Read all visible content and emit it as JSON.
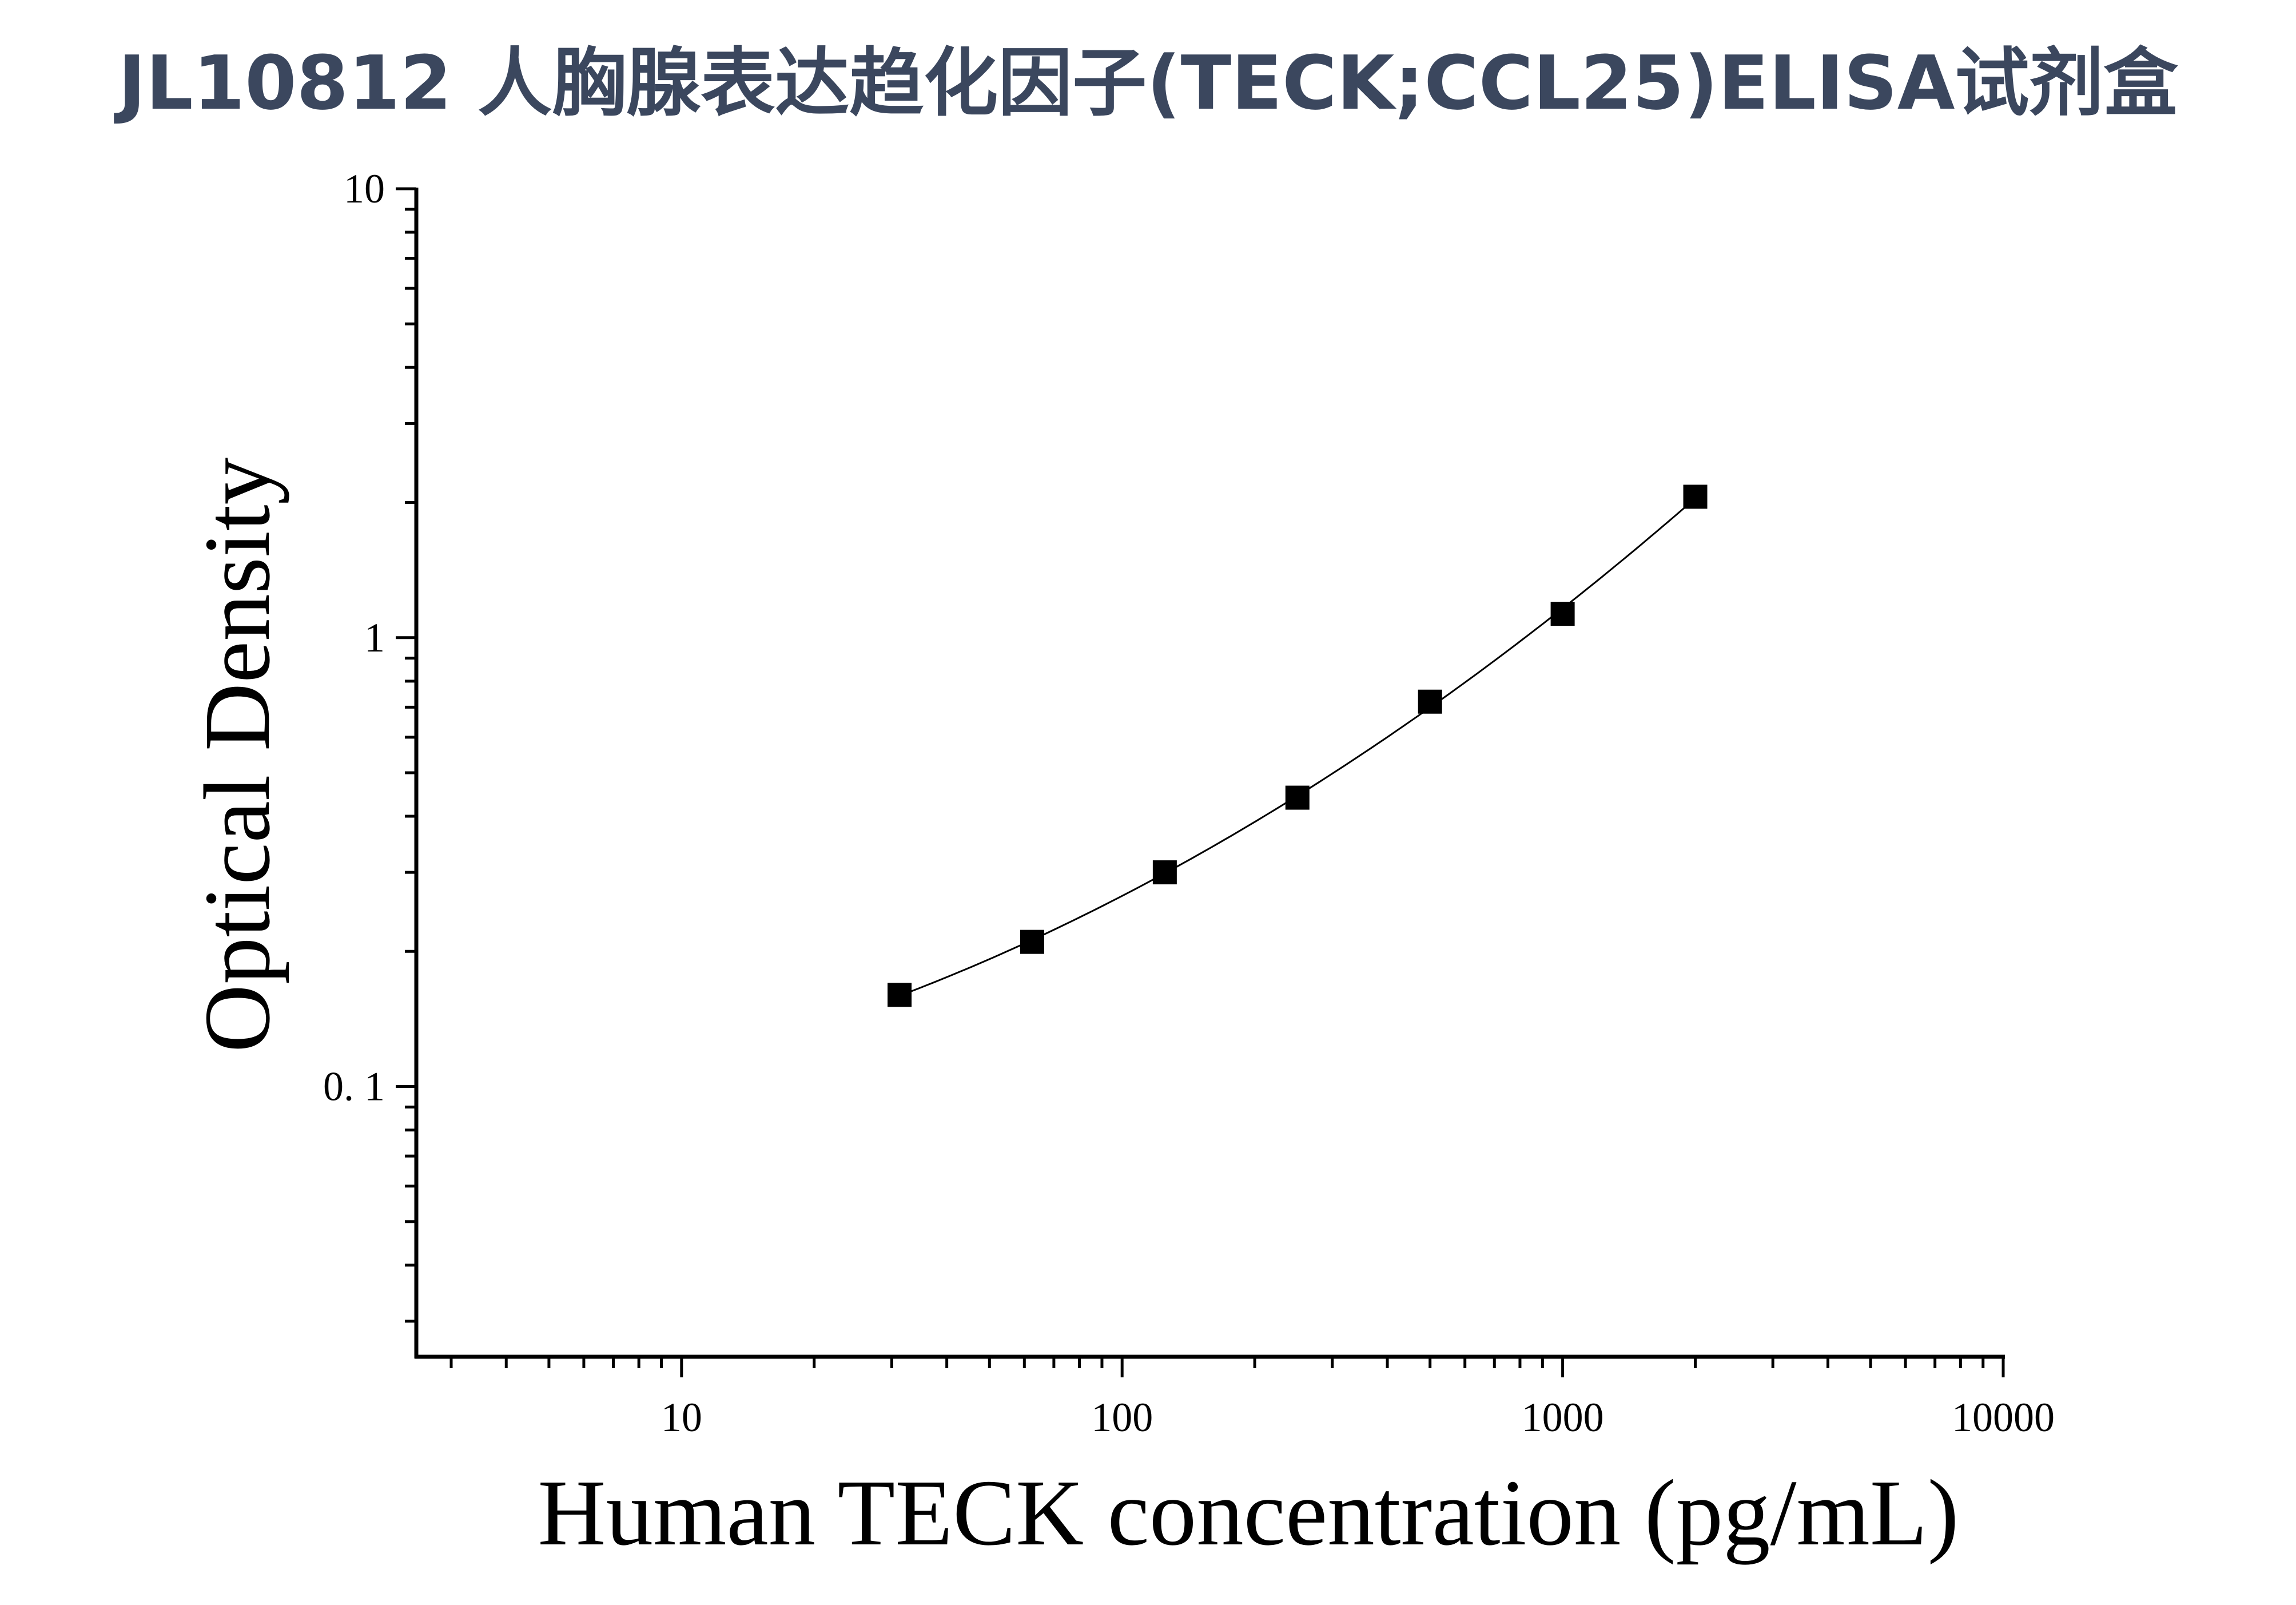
{
  "title": "JL10812 人胸腺表达趋化因子(TECK;CCL25)ELISA试剂盒",
  "chart_data": {
    "type": "scatter",
    "xlabel": "Human TECK concentration (pg/mL)",
    "ylabel": "Optical Density",
    "x_scale": "log",
    "y_scale": "log",
    "xlim": [
      2.5,
      10000
    ],
    "ylim": [
      0.025,
      10
    ],
    "x_tick_labels": [
      "10",
      "100",
      "1000",
      "10000"
    ],
    "y_tick_labels": [
      "0. 1",
      "1",
      "10"
    ],
    "x_ticks": [
      10,
      100,
      1000,
      10000
    ],
    "y_ticks": [
      0.1,
      1,
      10
    ],
    "grid": false,
    "marker_color": "#000000",
    "line_color": "#000000",
    "series": [
      {
        "marker": "square",
        "fit_line": true,
        "x": [
          31.25,
          62.5,
          125,
          250,
          500,
          1000,
          2000
        ],
        "y": [
          0.16,
          0.21,
          0.3,
          0.44,
          0.72,
          1.13,
          2.06
        ]
      }
    ]
  }
}
